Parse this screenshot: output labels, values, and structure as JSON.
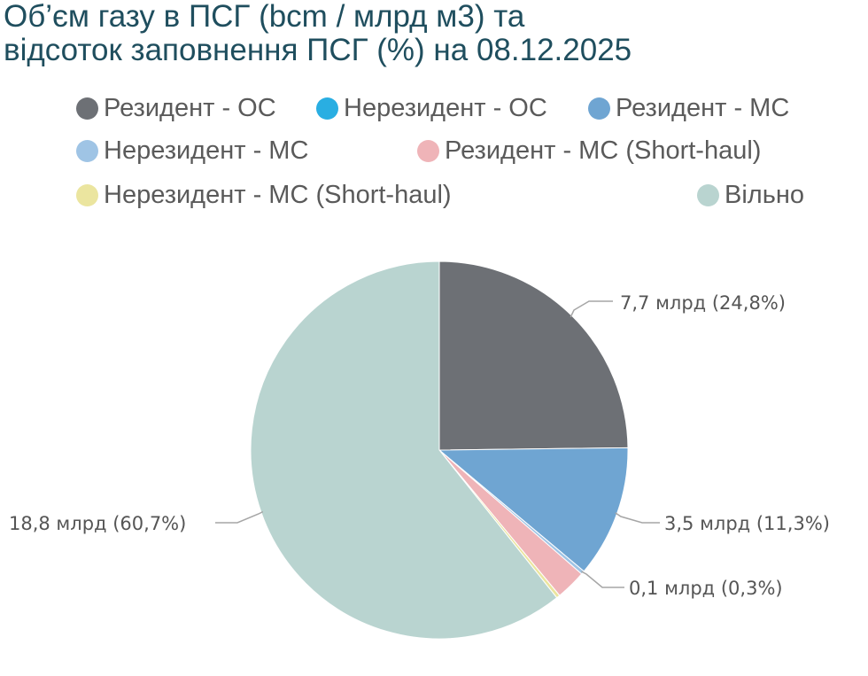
{
  "title": {
    "line1": "Об’єм газу в ПСГ (bcm / млрд м3) та",
    "line2": "відсоток заповнення ПСГ (%) на 08.12.2025"
  },
  "legend": [
    {
      "label": "Резидент - ОС",
      "color": "#6d7075"
    },
    {
      "label": "Нерезидент - ОС",
      "color": "#29aee2"
    },
    {
      "label": "Резидент - МС",
      "color": "#6fa5d2"
    },
    {
      "label": "Нерезидент - МС",
      "color": "#9fc4e5"
    },
    {
      "label": "Резидент -  МС (Short-haul)",
      "color": "#efb4b8"
    },
    {
      "label": "Нерезидент -  МС (Short-haul)",
      "color": "#ebe59f"
    },
    {
      "label": "Вільно",
      "color": "#b9d4d0"
    }
  ],
  "chart_data": {
    "type": "pie",
    "categories": [
      "Резидент - ОС",
      "Нерезидент - ОС",
      "Резидент - МС",
      "Нерезидент - МС",
      "Резидент -  МС (Short-haul)",
      "Нерезидент -  МС (Short-haul)",
      "Вільно"
    ],
    "values": [
      24.8,
      0.0,
      11.3,
      0.3,
      2.6,
      0.3,
      60.7
    ],
    "colors": [
      "#6d7075",
      "#29aee2",
      "#6fa5d2",
      "#9fc4e5",
      "#efb4b8",
      "#ebe59f",
      "#b9d4d0"
    ],
    "data_labels": [
      {
        "category": "Резидент - ОС",
        "text": "7,7 млрд (24,8%)"
      },
      {
        "category": "Резидент - МС",
        "text": "3,5 млрд (11,3%)"
      },
      {
        "category": "Нерезидент - МС",
        "text": "0,1 млрд (0,3%)"
      },
      {
        "category": "Вільно",
        "text": "18,8 млрд (60,7%)"
      }
    ],
    "legend_position": "top"
  }
}
